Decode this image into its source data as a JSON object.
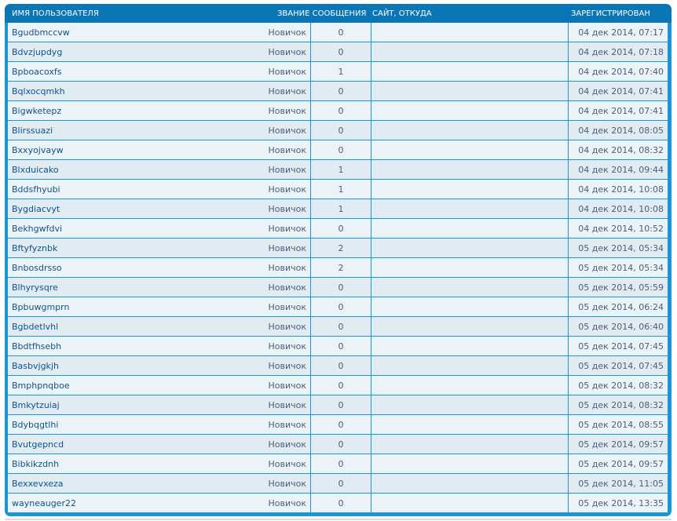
{
  "header": {
    "name": "ИМЯ ПОЛЬЗОВАТЕЛЯ",
    "rank_posts": "ЗВАНИЕ СООБЩЕНИЯ",
    "site": "САЙТ, ОТКУДА",
    "registered": "ЗАРЕГИСТРИРОВАН"
  },
  "rows": [
    {
      "name": "Bgudbmccvw",
      "rank": "Новичок",
      "posts": "0",
      "site": "",
      "date": "04 дек 2014, 07:17"
    },
    {
      "name": "Bdvzjupdyg",
      "rank": "Новичок",
      "posts": "0",
      "site": "",
      "date": "04 дек 2014, 07:18"
    },
    {
      "name": "Bpboacoxfs",
      "rank": "Новичок",
      "posts": "1",
      "site": "",
      "date": "04 дек 2014, 07:40"
    },
    {
      "name": "Bqlxocqmkh",
      "rank": "Новичок",
      "posts": "0",
      "site": "",
      "date": "04 дек 2014, 07:41"
    },
    {
      "name": "Bigwketepz",
      "rank": "Новичок",
      "posts": "0",
      "site": "",
      "date": "04 дек 2014, 07:41"
    },
    {
      "name": "Blirssuazi",
      "rank": "Новичок",
      "posts": "0",
      "site": "",
      "date": "04 дек 2014, 08:05"
    },
    {
      "name": "Bxxyojvayw",
      "rank": "Новичок",
      "posts": "0",
      "site": "",
      "date": "04 дек 2014, 08:32"
    },
    {
      "name": "Blxduicako",
      "rank": "Новичок",
      "posts": "1",
      "site": "",
      "date": "04 дек 2014, 09:44"
    },
    {
      "name": "Bddsfhyubi",
      "rank": "Новичок",
      "posts": "1",
      "site": "",
      "date": "04 дек 2014, 10:08"
    },
    {
      "name": "Bygdiacvyt",
      "rank": "Новичок",
      "posts": "1",
      "site": "",
      "date": "04 дек 2014, 10:08"
    },
    {
      "name": "Bekhgwfdvi",
      "rank": "Новичок",
      "posts": "0",
      "site": "",
      "date": "04 дек 2014, 10:52"
    },
    {
      "name": "Bftyfyznbk",
      "rank": "Новичок",
      "posts": "2",
      "site": "",
      "date": "05 дек 2014, 05:34"
    },
    {
      "name": "Bnbosdrsso",
      "rank": "Новичок",
      "posts": "2",
      "site": "",
      "date": "05 дек 2014, 05:34"
    },
    {
      "name": "Blhyrysqre",
      "rank": "Новичок",
      "posts": "0",
      "site": "",
      "date": "05 дек 2014, 05:59"
    },
    {
      "name": "Bpbuwgmprn",
      "rank": "Новичок",
      "posts": "0",
      "site": "",
      "date": "05 дек 2014, 06:24"
    },
    {
      "name": "Bgbdetlvhl",
      "rank": "Новичок",
      "posts": "0",
      "site": "",
      "date": "05 дек 2014, 06:40"
    },
    {
      "name": "Bbdtfhsebh",
      "rank": "Новичок",
      "posts": "0",
      "site": "",
      "date": "05 дек 2014, 07:45"
    },
    {
      "name": "Basbvjgkjh",
      "rank": "Новичок",
      "posts": "0",
      "site": "",
      "date": "05 дек 2014, 07:45"
    },
    {
      "name": "Bmphpnqboe",
      "rank": "Новичок",
      "posts": "0",
      "site": "",
      "date": "05 дек 2014, 08:32"
    },
    {
      "name": "Bmkytzuiaj",
      "rank": "Новичок",
      "posts": "0",
      "site": "",
      "date": "05 дек 2014, 08:32"
    },
    {
      "name": "Bdybqgtlhi",
      "rank": "Новичок",
      "posts": "0",
      "site": "",
      "date": "05 дек 2014, 08:55"
    },
    {
      "name": "Bvutgepncd",
      "rank": "Новичок",
      "posts": "0",
      "site": "",
      "date": "05 дек 2014, 09:57"
    },
    {
      "name": "Bibkikzdnh",
      "rank": "Новичок",
      "posts": "0",
      "site": "",
      "date": "05 дек 2014, 09:57"
    },
    {
      "name": "Bexxevxeza",
      "rank": "Новичок",
      "posts": "0",
      "site": "",
      "date": "05 дек 2014, 11:05"
    },
    {
      "name": "wayneauger22",
      "rank": "Новичок",
      "posts": "0",
      "site": "",
      "date": "05 дек 2014, 13:35"
    }
  ]
}
